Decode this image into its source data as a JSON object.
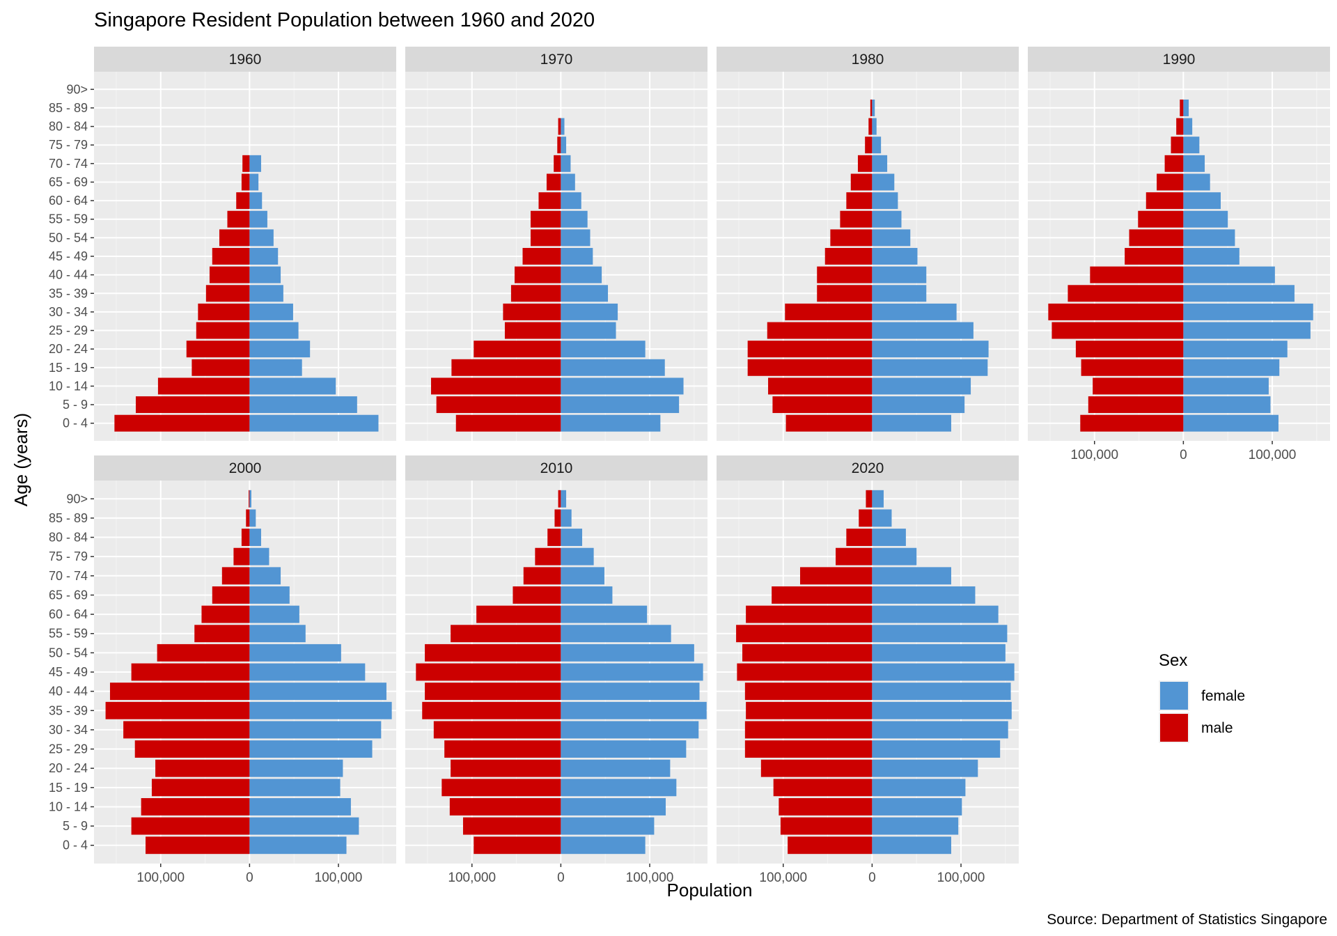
{
  "chart_data": {
    "type": "bar",
    "title": "Singapore Resident Population between 1960 and 2020",
    "caption": "Source: Department of Statistics Singapore",
    "xlabel": "Population",
    "ylabel": "Age (years)",
    "orientation": "horizontal",
    "xlim": [
      -175000,
      165000
    ],
    "x_ticks": [
      {
        "value": -100000,
        "label": "100,000"
      },
      {
        "value": 0,
        "label": "0"
      },
      {
        "value": 100000,
        "label": "100,000"
      }
    ],
    "age_groups": [
      "0 - 4",
      "5 - 9",
      "10 - 14",
      "15 - 19",
      "20 - 24",
      "25 - 29",
      "30 - 34",
      "35 - 39",
      "40 - 44",
      "45 - 49",
      "50 - 54",
      "55 - 59",
      "60 - 64",
      "65 - 69",
      "70 - 74",
      "75 - 79",
      "80 - 84",
      "85 - 89",
      "90>"
    ],
    "legend": {
      "title": "Sex",
      "position": "right",
      "entries": [
        {
          "key": "female",
          "label": "female",
          "color": "#5295d3"
        },
        {
          "key": "male",
          "label": "male",
          "color": "#cc0000"
        }
      ]
    },
    "panels": [
      {
        "year": "1960",
        "male": [
          152000,
          128000,
          103000,
          65000,
          71000,
          60000,
          58000,
          49000,
          45000,
          42000,
          34000,
          25000,
          15000,
          9000,
          8000,
          0,
          0,
          0,
          0
        ],
        "female": [
          145000,
          121000,
          97000,
          59000,
          68000,
          55000,
          49000,
          38000,
          35000,
          32000,
          27000,
          20000,
          14000,
          10000,
          13000,
          0,
          0,
          0,
          0
        ]
      },
      {
        "year": "1970",
        "male": [
          118000,
          140000,
          146000,
          123000,
          98000,
          63000,
          65000,
          56000,
          52000,
          43000,
          34000,
          34000,
          25000,
          16000,
          8000,
          4000,
          3000,
          0,
          0
        ],
        "female": [
          112000,
          133000,
          138000,
          117000,
          95000,
          62000,
          64000,
          53000,
          46000,
          36000,
          33000,
          30000,
          23000,
          16000,
          11000,
          6000,
          4000,
          0,
          0
        ]
      },
      {
        "year": "1980",
        "male": [
          97000,
          112000,
          117000,
          140000,
          140000,
          118000,
          98000,
          62000,
          62000,
          53000,
          47000,
          36000,
          29000,
          24000,
          16000,
          8000,
          4000,
          2000,
          0
        ],
        "female": [
          89000,
          104000,
          111000,
          130000,
          131000,
          114000,
          95000,
          61000,
          61000,
          51000,
          43000,
          33000,
          29000,
          25000,
          17000,
          10000,
          5000,
          3000,
          0
        ]
      },
      {
        "year": "1990",
        "male": [
          116000,
          107000,
          102000,
          115000,
          121000,
          148000,
          152000,
          130000,
          105000,
          66000,
          61000,
          51000,
          42000,
          30000,
          21000,
          14000,
          8000,
          4000,
          0
        ],
        "female": [
          107000,
          98000,
          96000,
          108000,
          117000,
          143000,
          146000,
          125000,
          103000,
          63000,
          58000,
          50000,
          42000,
          30000,
          24000,
          18000,
          10000,
          6000,
          0
        ]
      },
      {
        "year": "2000",
        "male": [
          117000,
          133000,
          122000,
          110000,
          106000,
          129000,
          142000,
          162000,
          157000,
          133000,
          104000,
          62000,
          54000,
          42000,
          31000,
          18000,
          9000,
          4000,
          1000
        ],
        "female": [
          109000,
          123000,
          114000,
          102000,
          105000,
          138000,
          148000,
          160000,
          154000,
          130000,
          103000,
          63000,
          56000,
          45000,
          35000,
          22000,
          13000,
          7000,
          2000
        ]
      },
      {
        "year": "2010",
        "male": [
          98000,
          110000,
          125000,
          134000,
          124000,
          131000,
          143000,
          156000,
          153000,
          163000,
          153000,
          124000,
          95000,
          54000,
          42000,
          29000,
          15000,
          7000,
          3000
        ],
        "female": [
          95000,
          105000,
          118000,
          130000,
          123000,
          141000,
          155000,
          164000,
          156000,
          160000,
          150000,
          124000,
          97000,
          58000,
          49000,
          37000,
          24000,
          12000,
          6000
        ]
      },
      {
        "year": "2020",
        "male": [
          95000,
          103000,
          105000,
          111000,
          125000,
          143000,
          143000,
          142000,
          143000,
          152000,
          146000,
          153000,
          142000,
          113000,
          81000,
          41000,
          29000,
          15000,
          7000
        ],
        "female": [
          89000,
          97000,
          101000,
          105000,
          119000,
          144000,
          153000,
          157000,
          156000,
          160000,
          150000,
          152000,
          142000,
          116000,
          89000,
          50000,
          38000,
          22000,
          13000
        ]
      }
    ]
  }
}
